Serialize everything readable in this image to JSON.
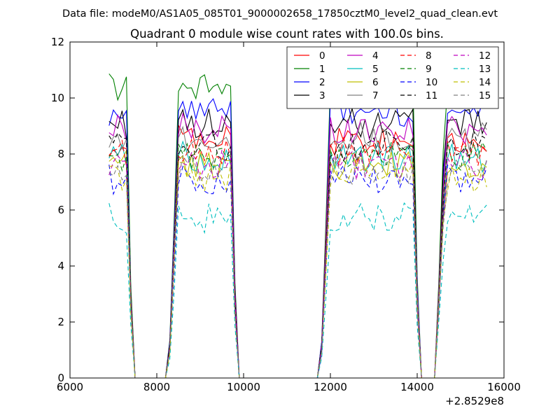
{
  "chart_data": {
    "type": "line",
    "suptitle": "Data file: modeM0/AS1A05_085T01_9000002658_17850cztM0_level2_quad_clean.evt",
    "title": "Quadrant 0 module wise count rates with 100.0s bins.",
    "xlabel": "",
    "ylabel": "",
    "xlim": [
      6000,
      16000
    ],
    "ylim": [
      0,
      12
    ],
    "x_offset_label": "+2.8529e8",
    "xticks": [
      6000,
      8000,
      10000,
      12000,
      14000,
      16000
    ],
    "yticks": [
      0,
      2,
      4,
      6,
      8,
      10,
      12
    ],
    "grid": false,
    "legend_position": "top-right",
    "x": [
      6900,
      7000,
      7100,
      7200,
      7300,
      7400,
      7500,
      7600,
      7700,
      7800,
      7900,
      8000,
      8100,
      8200,
      8300,
      8400,
      8500,
      8600,
      8700,
      8800,
      8900,
      9000,
      9100,
      9200,
      9300,
      9400,
      9500,
      9600,
      9700,
      9800,
      9900,
      10000,
      10100,
      10200,
      10300,
      10400,
      10500,
      10600,
      10700,
      10800,
      10900,
      11000,
      11100,
      11200,
      11300,
      11400,
      11500,
      11600,
      11700,
      11800,
      11900,
      12000,
      12100,
      12200,
      12300,
      12400,
      12500,
      12600,
      12700,
      12800,
      12900,
      13000,
      13100,
      13200,
      13300,
      13400,
      13500,
      13600,
      13700,
      13800,
      13900,
      14000,
      14100,
      14200,
      14300,
      14400,
      14500,
      14600,
      14700,
      14800,
      14900,
      15000,
      15100,
      15200,
      15300,
      15400,
      15500,
      15600
    ],
    "segments": [
      {
        "x_start": 6900,
        "rise_end": 6900,
        "plateau_end": 7300,
        "x_end": 7450
      },
      {
        "x_start": 8300,
        "rise_end": 8500,
        "plateau_end": 9700,
        "x_end": 9850
      },
      {
        "x_start": 11800,
        "rise_end": 12000,
        "plateau_end": 13900,
        "x_end": 14050
      },
      {
        "x_start": 14450,
        "rise_end": 14650,
        "plateau_end": 15600,
        "x_end": 15600
      }
    ],
    "series": [
      {
        "name": "0",
        "color": "#ff0000",
        "dash": "solid",
        "level": 8.5
      },
      {
        "name": "1",
        "color": "#008000",
        "dash": "solid",
        "level": 10.4
      },
      {
        "name": "2",
        "color": "#0000ff",
        "dash": "solid",
        "level": 9.5
      },
      {
        "name": "3",
        "color": "#000000",
        "dash": "solid",
        "level": 9.1
      },
      {
        "name": "4",
        "color": "#bf00bf",
        "dash": "solid",
        "level": 8.9
      },
      {
        "name": "5",
        "color": "#00bfbf",
        "dash": "solid",
        "level": 7.9
      },
      {
        "name": "6",
        "color": "#bfbf00",
        "dash": "solid",
        "level": 7.6
      },
      {
        "name": "7",
        "color": "#808080",
        "dash": "solid",
        "level": 8.6
      },
      {
        "name": "8",
        "color": "#ff0000",
        "dash": "dashed",
        "level": 8.1
      },
      {
        "name": "9",
        "color": "#008000",
        "dash": "dashed",
        "level": 7.9
      },
      {
        "name": "10",
        "color": "#0000ff",
        "dash": "dashed",
        "level": 7.1
      },
      {
        "name": "11",
        "color": "#000000",
        "dash": "dashed",
        "level": 8.3
      },
      {
        "name": "12",
        "color": "#bf00bf",
        "dash": "dashed",
        "level": 7.6
      },
      {
        "name": "13",
        "color": "#00bfbf",
        "dash": "dashed",
        "level": 5.7
      },
      {
        "name": "14",
        "color": "#bfbf00",
        "dash": "dashed",
        "level": 7.2
      },
      {
        "name": "15",
        "color": "#808080",
        "dash": "dashed",
        "level": 7.4
      }
    ]
  }
}
